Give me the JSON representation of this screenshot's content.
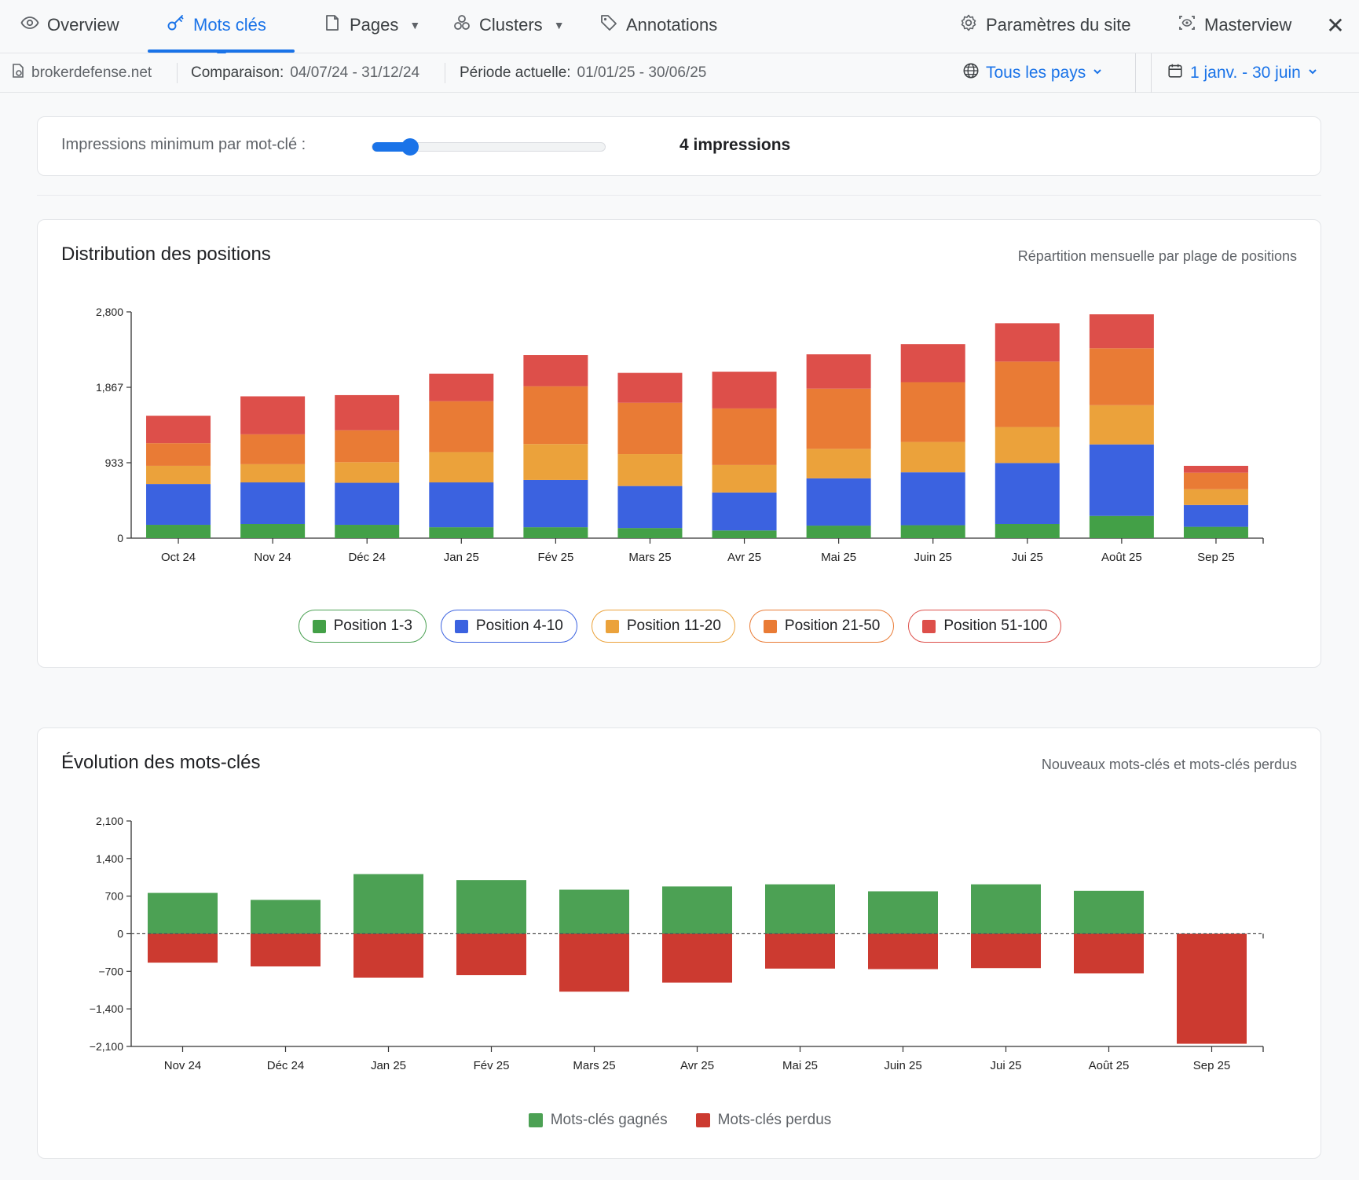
{
  "nav": {
    "tabs": [
      {
        "label": "Overview",
        "icon": "eye-icon"
      },
      {
        "label": "Mots clés",
        "icon": "key-icon",
        "active": true
      },
      {
        "label": "Pages",
        "icon": "page-icon",
        "caret": "▼"
      },
      {
        "label": "Clusters",
        "icon": "clusters-icon",
        "caret": "▼"
      },
      {
        "label": "Annotations",
        "icon": "tag-icon"
      }
    ],
    "site_settings": "Paramètres du site",
    "masterview": "Masterview",
    "close": "✕"
  },
  "subbar": {
    "domain": "brokerdefense.net",
    "comparison_label": "Comparaison:",
    "comparison_value": "04/07/24 - 31/12/24",
    "current_label": "Période actuelle:",
    "current_value": "01/01/25 - 30/06/25",
    "country": "Tous les pays",
    "date_range": "1 janv. - 30 juin"
  },
  "slider": {
    "label": "Impressions minimum par mot-clé :",
    "value_text": "4 impressions",
    "fraction": 0.16
  },
  "colors": {
    "accent": "#1a73e8",
    "pos_1_3": "#43a047",
    "pos_4_10": "#3b62e0",
    "pos_11_20": "#eba23b",
    "pos_21_50": "#e97b35",
    "pos_51_100": "#dd4f4a",
    "gained": "#4ca154",
    "lost": "#cc3a30"
  },
  "chart1": {
    "title": "Distribution des positions",
    "subtitle": "Répartition mensuelle par plage de positions"
  },
  "chart2": {
    "title": "Évolution des mots-clés",
    "subtitle": "Nouveaux mots-clés et mots-clés perdus"
  },
  "chart_data": [
    {
      "type": "bar",
      "stacked": true,
      "title": "Distribution des positions",
      "subtitle": "Répartition mensuelle par plage de positions",
      "categories": [
        "Oct 24",
        "Nov 24",
        "Déc 24",
        "Jan 25",
        "Fév 25",
        "Mars 25",
        "Avr 25",
        "Mai 25",
        "Juin 25",
        "Jui 25",
        "Août 25",
        "Sep 25"
      ],
      "yticks": [
        "0",
        "933",
        "1,867",
        "2,800"
      ],
      "ylim": [
        0,
        2800
      ],
      "series": [
        {
          "name": "Position 1-3",
          "color": "#43a047",
          "values": [
            165,
            175,
            165,
            135,
            135,
            125,
            95,
            155,
            160,
            175,
            275,
            140
          ]
        },
        {
          "name": "Position 4-10",
          "color": "#3b62e0",
          "values": [
            505,
            515,
            520,
            555,
            585,
            520,
            470,
            585,
            655,
            755,
            885,
            270
          ]
        },
        {
          "name": "Position 11-20",
          "color": "#eba23b",
          "values": [
            225,
            225,
            255,
            375,
            445,
            395,
            340,
            365,
            375,
            445,
            485,
            195
          ]
        },
        {
          "name": "Position 21-50",
          "color": "#e97b35",
          "values": [
            280,
            370,
            395,
            630,
            715,
            635,
            700,
            745,
            740,
            810,
            705,
            205
          ]
        },
        {
          "name": "Position 51-100",
          "color": "#dd4f4a",
          "values": [
            340,
            470,
            435,
            340,
            385,
            370,
            455,
            425,
            470,
            475,
            420,
            85
          ]
        }
      ],
      "legend_position": "bottom",
      "grid": false
    },
    {
      "type": "bar",
      "title": "Évolution des mots-clés",
      "subtitle": "Nouveaux mots-clés et mots-clés perdus",
      "categories": [
        "Nov 24",
        "Déc 24",
        "Jan 25",
        "Fév 25",
        "Mars 25",
        "Avr 25",
        "Mai 25",
        "Juin 25",
        "Jui 25",
        "Août 25",
        "Sep 25"
      ],
      "yticks": [
        "2,100",
        "1,400",
        "700",
        "0",
        "−700",
        "−1,400",
        "−2,100"
      ],
      "ylim": [
        -2100,
        2100
      ],
      "series": [
        {
          "name": "Mots-clés gagnés",
          "color": "#4ca154",
          "values": [
            760,
            630,
            1110,
            1000,
            820,
            880,
            920,
            790,
            920,
            800,
            0
          ]
        },
        {
          "name": "Mots-clés perdus",
          "color": "#cc3a30",
          "values": [
            -540,
            -610,
            -820,
            -770,
            -1080,
            -910,
            -650,
            -660,
            -640,
            -740,
            -2050
          ]
        }
      ],
      "legend_position": "bottom",
      "grid": false
    }
  ]
}
